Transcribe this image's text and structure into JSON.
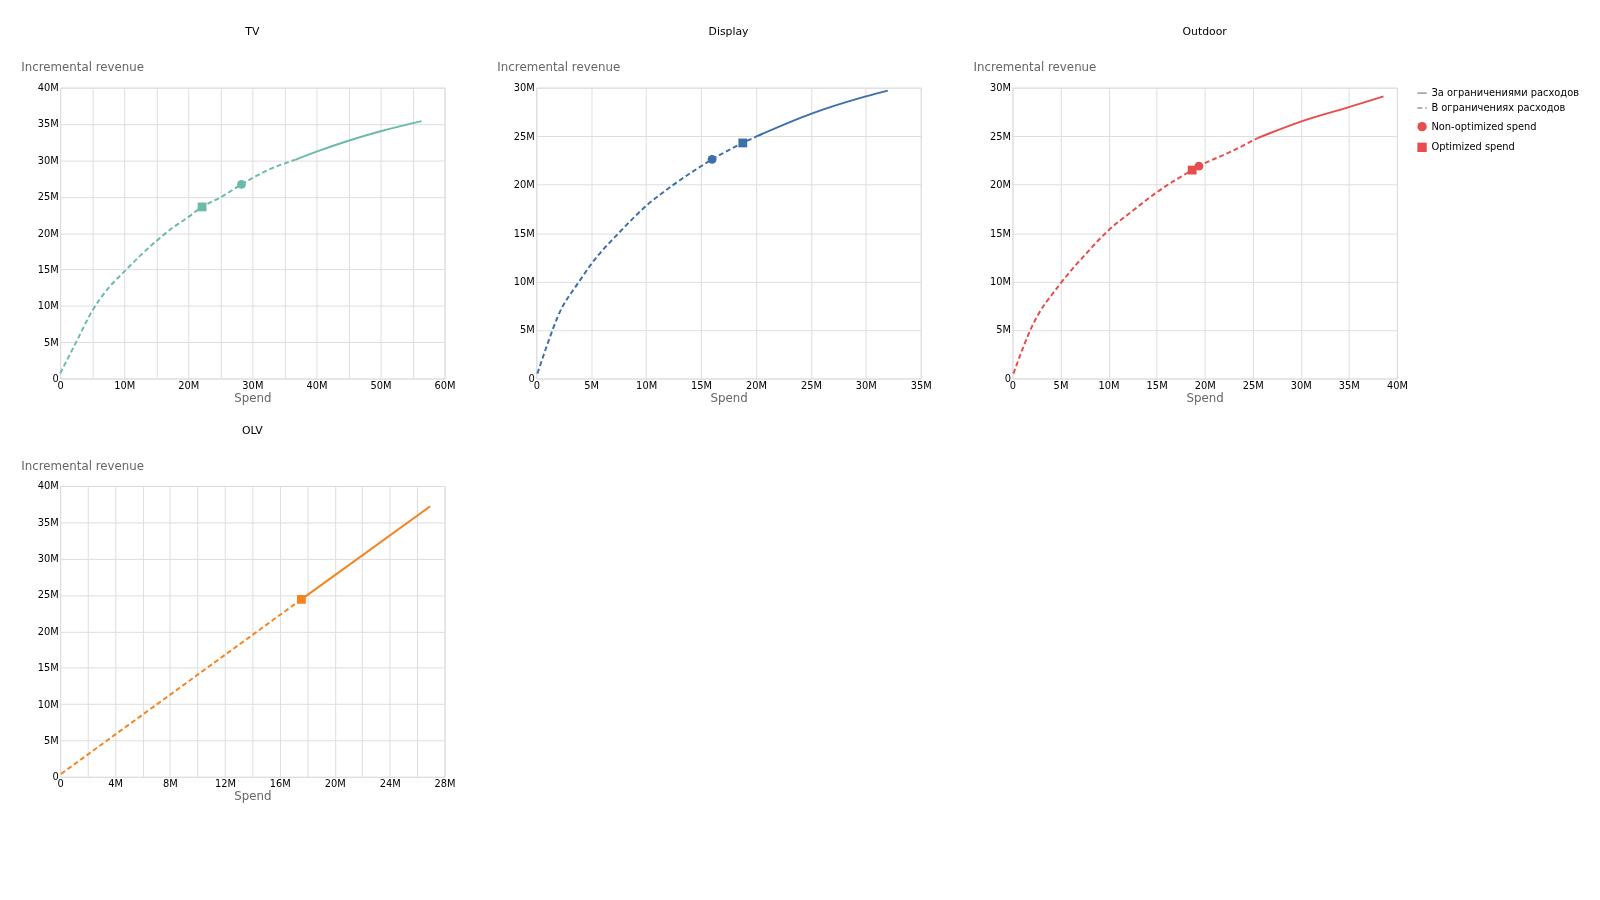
{
  "chart_data": [
    {
      "type": "line",
      "title": "TV",
      "xlabel": "Spend",
      "ylabel": "Incremental revenue",
      "grid": true,
      "legend": false,
      "xlim": [
        0,
        60
      ],
      "ylim": [
        0,
        40
      ],
      "xticks": [
        0,
        {
          "value": 5,
          "label": null
        },
        {
          "value": 10,
          "label": "10M"
        },
        {
          "value": 15,
          "label": null
        },
        {
          "value": 20,
          "label": "20M"
        },
        {
          "value": 25,
          "label": null
        },
        {
          "value": 30,
          "label": "30M"
        },
        {
          "value": 35,
          "label": null
        },
        {
          "value": 40,
          "label": "40M"
        },
        {
          "value": 45,
          "label": null
        },
        {
          "value": 50,
          "label": "50M"
        },
        {
          "value": 55,
          "label": null
        },
        {
          "value": 60,
          "label": "60M"
        }
      ],
      "yticks": [
        0,
        {
          "value": 5,
          "label": "5M"
        },
        {
          "value": 10,
          "label": "10M"
        },
        {
          "value": 15,
          "label": "15M"
        },
        {
          "value": 20,
          "label": "20M"
        },
        {
          "value": 25,
          "label": "25M"
        },
        {
          "value": 30,
          "label": "30M"
        },
        {
          "value": 35,
          "label": "35M"
        },
        {
          "value": 40,
          "label": "40M"
        }
      ],
      "series": [
        {
          "color": "#6cbaaa",
          "line_style": "solid",
          "x": [
            36.75,
            40,
            45,
            50,
            56.4
          ],
          "values": [
            30.1,
            31.2,
            32.7,
            34.0,
            35.4
          ]
        },
        {
          "color": "#6cbaaa",
          "line_style": "dashed",
          "x": [
            0,
            2.5,
            5,
            7.5,
            10,
            12.5,
            15,
            17.5,
            20,
            22.15,
            25,
            28.3,
            32.5,
            36.75
          ],
          "values": [
            0.7,
            5.0,
            9.3,
            12.4,
            14.7,
            16.9,
            18.9,
            20.7,
            22.2,
            23.6,
            24.9,
            26.7,
            28.7,
            30.1
          ]
        },
        {
          "type": "scatter",
          "marker": "circle",
          "color": "#6cbaaa",
          "x": [
            28.3
          ],
          "values": [
            26.7
          ]
        },
        {
          "type": "scatter",
          "marker": "square",
          "color": "#6cbaaa",
          "x": [
            22.15
          ],
          "values": [
            23.6
          ]
        }
      ]
    },
    {
      "type": "line",
      "title": "Display",
      "xlabel": "Spend",
      "ylabel": "Incremental revenue",
      "grid": true,
      "legend": false,
      "xlim": [
        0,
        35
      ],
      "ylim": [
        0,
        30
      ],
      "xticks": [
        0,
        {
          "value": 5,
          "label": "5M"
        },
        {
          "value": 10,
          "label": "10M"
        },
        {
          "value": 15,
          "label": "15M"
        },
        {
          "value": 20,
          "label": "20M"
        },
        {
          "value": 25,
          "label": "25M"
        },
        {
          "value": 30,
          "label": "30M"
        },
        {
          "value": 35,
          "label": "35M"
        }
      ],
      "yticks": [
        0,
        {
          "value": 5,
          "label": "5M"
        },
        {
          "value": 10,
          "label": "10M"
        },
        {
          "value": 15,
          "label": "15M"
        },
        {
          "value": 20,
          "label": "20M"
        },
        {
          "value": 25,
          "label": "25M"
        },
        {
          "value": 30,
          "label": "30M"
        }
      ],
      "series": [
        {
          "color": "#3d6faa",
          "line_style": "solid",
          "x": [
            20.1,
            25,
            30,
            32.0
          ],
          "values": [
            25.0,
            27.3,
            29.1,
            29.7
          ]
        },
        {
          "color": "#3d6faa",
          "line_style": "dashed",
          "x": [
            0.1,
            1,
            2,
            3.9,
            5,
            7.5,
            10,
            12.5,
            15,
            16.0,
            18.8,
            20.1
          ],
          "values": [
            0.5,
            3.5,
            6.5,
            10.0,
            11.8,
            15.0,
            17.8,
            20.0,
            21.9,
            22.6,
            24.3,
            25.0
          ]
        },
        {
          "type": "scatter",
          "marker": "circle",
          "color": "#3d6faa",
          "x": [
            16.0
          ],
          "values": [
            22.6
          ]
        },
        {
          "type": "scatter",
          "marker": "square",
          "color": "#3d6faa",
          "x": [
            18.8
          ],
          "values": [
            24.3
          ]
        }
      ]
    },
    {
      "type": "line",
      "title": "Outdoor",
      "xlabel": "Spend",
      "ylabel": "Incremental revenue",
      "grid": true,
      "legend": "right",
      "xlim": [
        0,
        40
      ],
      "ylim": [
        0,
        30
      ],
      "xticks": [
        0,
        {
          "value": 5,
          "label": "5M"
        },
        {
          "value": 10,
          "label": "10M"
        },
        {
          "value": 15,
          "label": "15M"
        },
        {
          "value": 20,
          "label": "20M"
        },
        {
          "value": 25,
          "label": "25M"
        },
        {
          "value": 30,
          "label": "30M"
        },
        {
          "value": 35,
          "label": "35M"
        },
        {
          "value": 40,
          "label": "40M"
        }
      ],
      "yticks": [
        0,
        {
          "value": 5,
          "label": "5M"
        },
        {
          "value": 10,
          "label": "10M"
        },
        {
          "value": 15,
          "label": "15M"
        },
        {
          "value": 20,
          "label": "20M"
        },
        {
          "value": 25,
          "label": "25M"
        },
        {
          "value": 30,
          "label": "30M"
        }
      ],
      "series": [
        {
          "name": "За ограничениями расходов",
          "color": "#e84c4c",
          "line_style": "solid",
          "x": [
            25.5,
            30,
            35,
            38.6
          ],
          "values": [
            24.8,
            26.5,
            28.0,
            29.1
          ]
        },
        {
          "name": "В ограничениях расходов",
          "color": "#e84c4c",
          "line_style": "dashed",
          "x": [
            0.1,
            2,
            5,
            7.5,
            10,
            12.5,
            15,
            18.7,
            19.4,
            22.5,
            25.5
          ],
          "values": [
            0.5,
            5.3,
            9.8,
            12.7,
            15.3,
            17.3,
            19.2,
            21.5,
            21.9,
            23.3,
            24.8
          ]
        },
        {
          "name": "Non-optimized spend",
          "type": "scatter",
          "marker": "circle",
          "color": "#e84c4c",
          "x": [
            19.4
          ],
          "values": [
            21.9
          ]
        },
        {
          "name": "Optimized spend",
          "type": "scatter",
          "marker": "square",
          "color": "#e84c4c",
          "x": [
            18.7
          ],
          "values": [
            21.5
          ]
        }
      ]
    },
    {
      "type": "line",
      "title": "OLV",
      "xlabel": "Spend",
      "ylabel": "Incremental revenue",
      "grid": true,
      "legend": false,
      "xlim": [
        0,
        28
      ],
      "ylim": [
        0,
        40
      ],
      "xticks": [
        0,
        {
          "value": 2,
          "label": null
        },
        {
          "value": 4,
          "label": "4M"
        },
        {
          "value": 6,
          "label": null
        },
        {
          "value": 8,
          "label": "8M"
        },
        {
          "value": 10,
          "label": null
        },
        {
          "value": 12,
          "label": "12M"
        },
        {
          "value": 14,
          "label": null
        },
        {
          "value": 16,
          "label": "16M"
        },
        {
          "value": 18,
          "label": null
        },
        {
          "value": 20,
          "label": "20M"
        },
        {
          "value": 22,
          "label": null
        },
        {
          "value": 24,
          "label": "24M"
        },
        {
          "value": 26,
          "label": null
        },
        {
          "value": 28,
          "label": "28M"
        }
      ],
      "yticks": [
        0,
        {
          "value": 5,
          "label": "5M"
        },
        {
          "value": 10,
          "label": "10M"
        },
        {
          "value": 15,
          "label": "15M"
        },
        {
          "value": 20,
          "label": "20M"
        },
        {
          "value": 25,
          "label": "25M"
        },
        {
          "value": 30,
          "label": "30M"
        },
        {
          "value": 35,
          "label": "35M"
        },
        {
          "value": 40,
          "label": "40M"
        }
      ],
      "series": [
        {
          "color": "#f5841f",
          "line_style": "solid",
          "x": [
            17.57,
            26.95
          ],
          "values": [
            24.4,
            37.2
          ]
        },
        {
          "color": "#f5841f",
          "line_style": "dashed",
          "x": [
            0.07,
            17.57
          ],
          "values": [
            0.4,
            24.4
          ]
        },
        {
          "type": "scatter",
          "marker": "square",
          "color": "#f5841f",
          "x": [
            17.57
          ],
          "values": [
            24.4
          ]
        }
      ]
    }
  ]
}
